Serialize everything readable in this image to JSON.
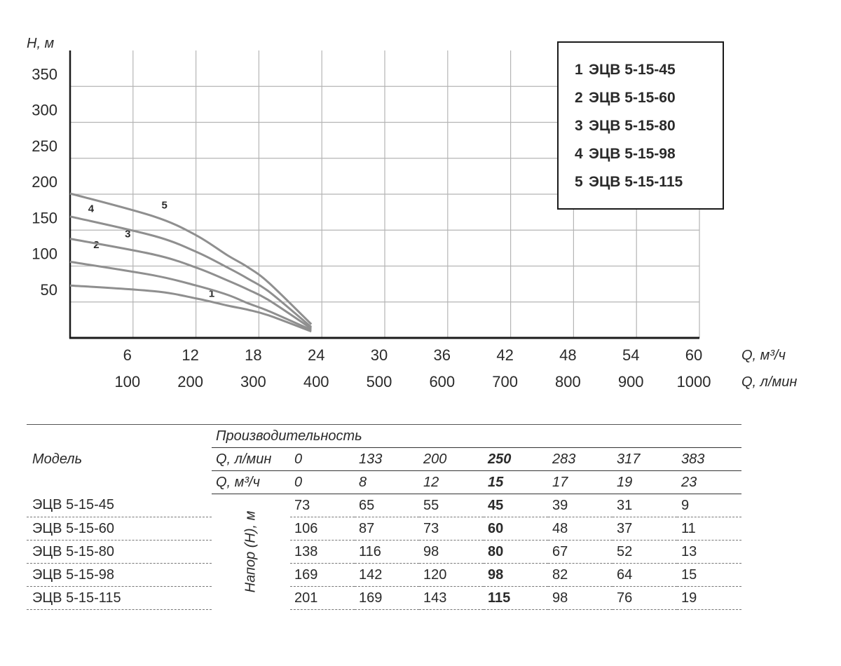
{
  "chart_data": {
    "type": "line",
    "y_axis_label": "H, м",
    "y_ticks": [
      50,
      100,
      150,
      200,
      250,
      300,
      350
    ],
    "ylim": [
      0,
      400
    ],
    "x_axis_label_m3h": "Q, м³/ч",
    "x_axis_label_lmin": "Q, л/мин",
    "x_ticks_m3h": [
      "6",
      "12",
      "18",
      "24",
      "30",
      "36",
      "42",
      "48",
      "54",
      "60"
    ],
    "x_ticks_lmin": [
      "100",
      "200",
      "300",
      "400",
      "500",
      "600",
      "700",
      "800",
      "900",
      "1000"
    ],
    "xlim_m3h": [
      0,
      60
    ],
    "grid": true,
    "legend_position": "top-right",
    "series": [
      {
        "num": "1",
        "name": "ЭЦВ 5-15-45",
        "x": [
          0,
          8,
          12,
          15,
          17,
          19,
          23
        ],
        "y": [
          73,
          65,
          55,
          45,
          39,
          31,
          9
        ]
      },
      {
        "num": "2",
        "name": "ЭЦВ 5-15-60",
        "x": [
          0,
          8,
          12,
          15,
          17,
          19,
          23
        ],
        "y": [
          106,
          87,
          73,
          60,
          48,
          37,
          11
        ]
      },
      {
        "num": "3",
        "name": "ЭЦВ 5-15-80",
        "x": [
          0,
          8,
          12,
          15,
          17,
          19,
          23
        ],
        "y": [
          138,
          116,
          98,
          80,
          67,
          52,
          13
        ]
      },
      {
        "num": "4",
        "name": "ЭЦВ 5-15-98",
        "x": [
          0,
          8,
          12,
          15,
          17,
          19,
          23
        ],
        "y": [
          169,
          142,
          120,
          98,
          82,
          64,
          15
        ]
      },
      {
        "num": "5",
        "name": "ЭЦВ 5-15-115",
        "x": [
          0,
          8,
          12,
          15,
          17,
          19,
          23
        ],
        "y": [
          201,
          169,
          143,
          115,
          98,
          76,
          19
        ]
      }
    ]
  },
  "table": {
    "model_header": "Модель",
    "performance_header": "Производительность",
    "flow_lmin_label": "Q, л/мин",
    "flow_m3h_label": "Q, м³/ч",
    "flow_lmin": [
      "0",
      "133",
      "200",
      "250",
      "283",
      "317",
      "383"
    ],
    "flow_m3h": [
      "0",
      "8",
      "12",
      "15",
      "17",
      "19",
      "23"
    ],
    "head_label": "Напор (H), м",
    "rows": [
      {
        "model": "ЭЦВ 5-15-45",
        "values": [
          "73",
          "65",
          "55",
          "45",
          "39",
          "31",
          "9"
        ]
      },
      {
        "model": "ЭЦВ 5-15-60",
        "values": [
          "106",
          "87",
          "73",
          "60",
          "48",
          "37",
          "11"
        ]
      },
      {
        "model": "ЭЦВ 5-15-80",
        "values": [
          "138",
          "116",
          "98",
          "80",
          "67",
          "52",
          "13"
        ]
      },
      {
        "model": "ЭЦВ 5-15-98",
        "values": [
          "169",
          "142",
          "120",
          "98",
          "82",
          "64",
          "15"
        ]
      },
      {
        "model": "ЭЦВ 5-15-115",
        "values": [
          "201",
          "169",
          "143",
          "115",
          "98",
          "76",
          "19"
        ]
      }
    ]
  },
  "colors": {
    "curve": "#8f8f8f",
    "grid": "#b5b5b5",
    "axis": "#1a1a1a"
  }
}
